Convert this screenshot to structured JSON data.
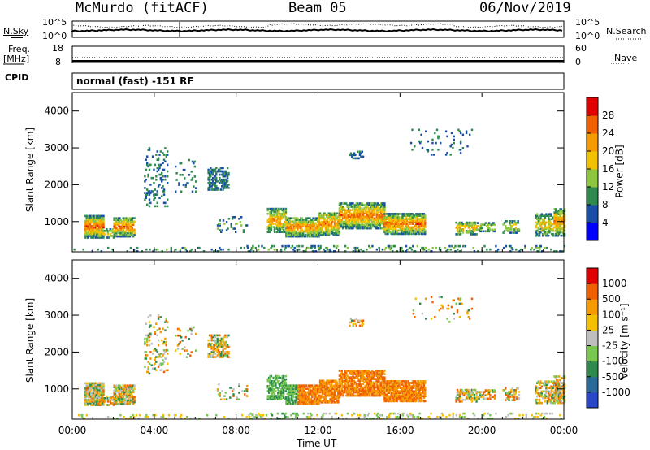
{
  "header": {
    "station": "McMurdo (fitACF)",
    "beam": "Beam 05",
    "date": "06/Nov/2019"
  },
  "top_panel": {
    "left_labels": [
      "N.Sky",
      "Freq.",
      "[MHz]",
      "CPID"
    ],
    "right_labels": [
      "N.Search",
      "Nave"
    ],
    "noise_ticks_left": [
      "10^5",
      "10^0"
    ],
    "noise_ticks_right": [
      "10^5",
      "10^0"
    ],
    "freq_ticks": [
      "18",
      "8"
    ],
    "nave_ticks": [
      "60",
      "0"
    ],
    "cpid_text": "normal (fast) -151 RF"
  },
  "chart_data": [
    {
      "type": "heatmap",
      "panel": "power",
      "ylabel": "Slant Range [km]",
      "xlabel": "",
      "ylim": [
        180,
        4500
      ],
      "yticks": [
        1000,
        2000,
        3000,
        4000
      ],
      "xticks": [
        "00:00",
        "04:00",
        "08:00",
        "12:00",
        "16:00",
        "20:00",
        "00:00"
      ],
      "colorbar": {
        "label": "Power [dB]",
        "ticks": [
          "4",
          "8",
          "12",
          "16",
          "20",
          "24",
          "28"
        ],
        "colors": [
          "#0000ff",
          "#1a4fa8",
          "#2f8a4e",
          "#8cc63f",
          "#f2c200",
          "#f59a00",
          "#f06000",
          "#e00000"
        ]
      }
    },
    {
      "type": "heatmap",
      "panel": "velocity",
      "ylabel": "Slant Range [km]",
      "xlabel": "Time UT",
      "ylim": [
        180,
        4500
      ],
      "yticks": [
        1000,
        2000,
        3000,
        4000
      ],
      "xticks": [
        "00:00",
        "04:00",
        "08:00",
        "12:00",
        "16:00",
        "20:00",
        "00:00"
      ],
      "colorbar": {
        "label": "Velocity [m s⁻¹]",
        "ticks": [
          "1000",
          "500",
          "100",
          "25",
          "-25",
          "-100",
          "-500",
          "-1000"
        ],
        "colors": [
          "#2848c8",
          "#2a6a9a",
          "#2f8a4e",
          "#78c850",
          "#bebebe",
          "#f5c000",
          "#f59a00",
          "#f06000",
          "#e00000"
        ]
      }
    }
  ]
}
